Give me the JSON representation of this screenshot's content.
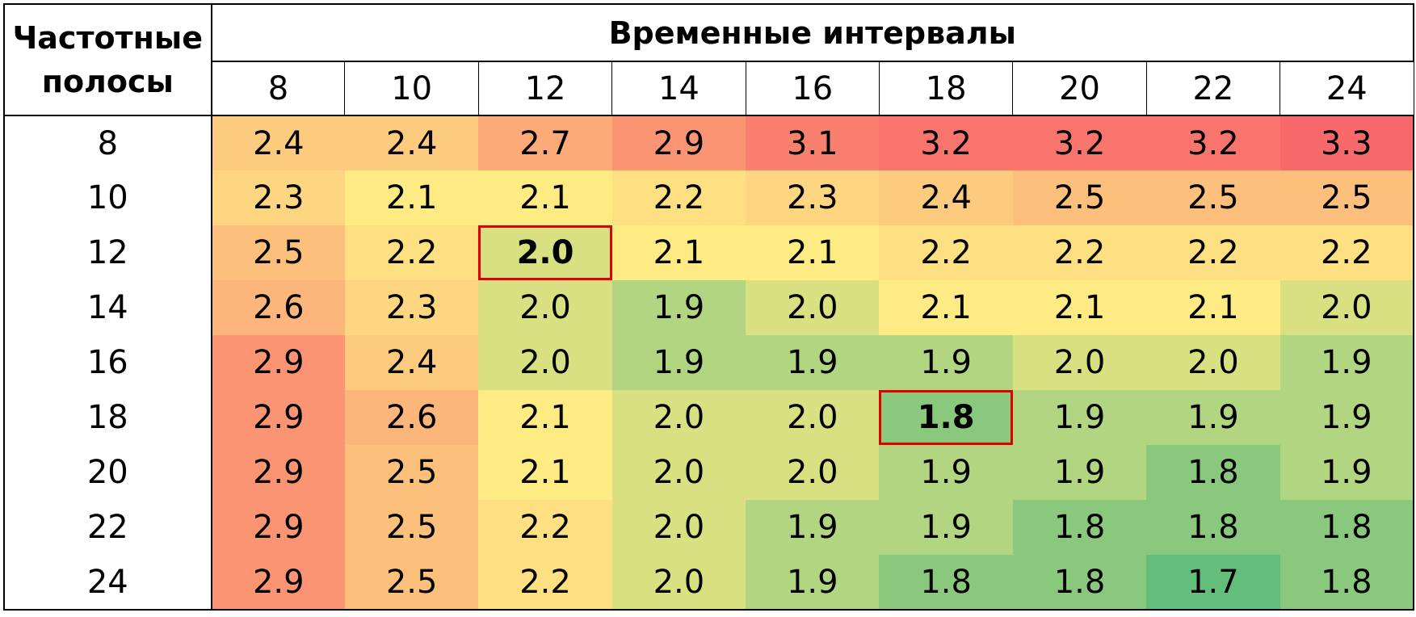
{
  "chart_data": {
    "type": "heatmap",
    "row_header": "Частотные полосы",
    "col_header": "Временные интервалы",
    "x": [
      "8",
      "10",
      "12",
      "14",
      "16",
      "18",
      "20",
      "22",
      "24"
    ],
    "y": [
      "8",
      "10",
      "12",
      "14",
      "16",
      "18",
      "20",
      "22",
      "24"
    ],
    "values": [
      [
        "2.4",
        "2.4",
        "2.7",
        "2.9",
        "3.1",
        "3.2",
        "3.2",
        "3.2",
        "3.3"
      ],
      [
        "2.3",
        "2.1",
        "2.1",
        "2.2",
        "2.3",
        "2.4",
        "2.5",
        "2.5",
        "2.5"
      ],
      [
        "2.5",
        "2.2",
        "2.0",
        "2.1",
        "2.1",
        "2.2",
        "2.2",
        "2.2",
        "2.2"
      ],
      [
        "2.6",
        "2.3",
        "2.0",
        "1.9",
        "2.0",
        "2.1",
        "2.1",
        "2.1",
        "2.0"
      ],
      [
        "2.9",
        "2.4",
        "2.0",
        "1.9",
        "1.9",
        "1.9",
        "2.0",
        "2.0",
        "1.9"
      ],
      [
        "2.9",
        "2.6",
        "2.1",
        "2.0",
        "2.0",
        "1.8",
        "1.9",
        "1.9",
        "1.9"
      ],
      [
        "2.9",
        "2.5",
        "2.1",
        "2.0",
        "2.0",
        "1.9",
        "1.9",
        "1.8",
        "1.9"
      ],
      [
        "2.9",
        "2.5",
        "2.2",
        "2.0",
        "1.9",
        "1.9",
        "1.8",
        "1.8",
        "1.8"
      ],
      [
        "2.9",
        "2.5",
        "2.2",
        "2.0",
        "1.9",
        "1.8",
        "1.8",
        "1.7",
        "1.8"
      ]
    ],
    "highlighted_cells": [
      {
        "row": "12",
        "col": "12"
      },
      {
        "row": "18",
        "col": "18"
      }
    ],
    "color_scale": {
      "low": "#63be7b",
      "mid": "#ffeb84",
      "high": "#f8696b"
    },
    "highlight_border_color": "#e00000"
  }
}
